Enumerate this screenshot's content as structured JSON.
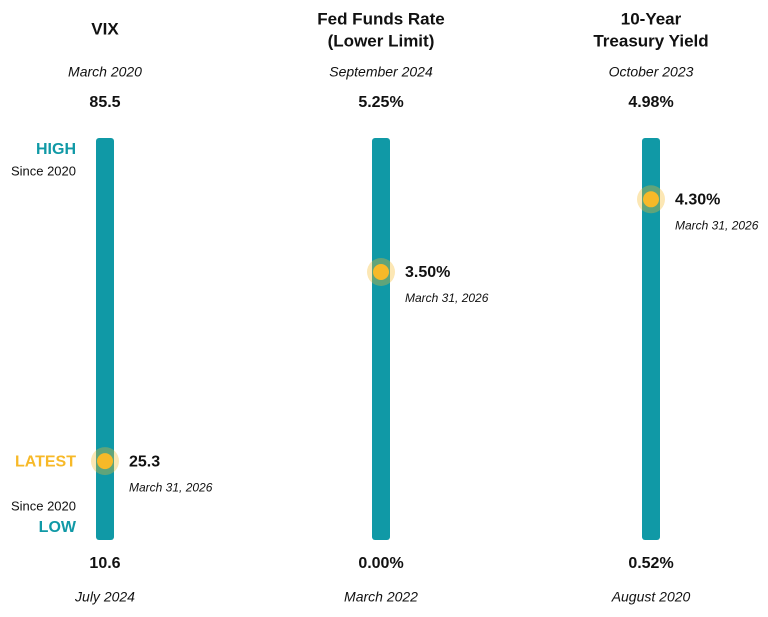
{
  "chart_data": [
    {
      "type": "range",
      "title": [
        "VIX"
      ],
      "high": {
        "value": 85.5,
        "date": "March 2020"
      },
      "low": {
        "value": 10.6,
        "date": "July 2024"
      },
      "latest": {
        "value": 25.3,
        "date": "March 31, 2026"
      },
      "color": "#1099a6",
      "marker_color": "#f7b928",
      "high_label": "HIGH",
      "high_note": "Since 2020",
      "latest_label": "LATEST",
      "low_note": "Since 2020",
      "low_label": "LOW"
    },
    {
      "type": "range",
      "title": [
        "Fed Funds Rate",
        "(Lower Limit)"
      ],
      "high": {
        "value": 5.25,
        "value_label": "5.25%",
        "date": "September 2024"
      },
      "low": {
        "value": 0,
        "value_label": "0.00%",
        "date": "March 2022"
      },
      "latest": {
        "value": 3.5,
        "value_label": "3.50%",
        "date": "March 31, 2026"
      },
      "color": "#1099a6",
      "marker_color": "#f7b928"
    },
    {
      "type": "range",
      "title": [
        "10-Year",
        "Treasury Yield"
      ],
      "high": {
        "value": 4.98,
        "value_label": "4.98%",
        "date": "October 2023"
      },
      "low": {
        "value": 0.52,
        "value_label": "0.52%",
        "date": "August 2020"
      },
      "latest": {
        "value": 4.3,
        "value_label": "4.30%",
        "date": "March 31, 2026"
      },
      "color": "#1099a6",
      "marker_color": "#f7b928"
    }
  ]
}
